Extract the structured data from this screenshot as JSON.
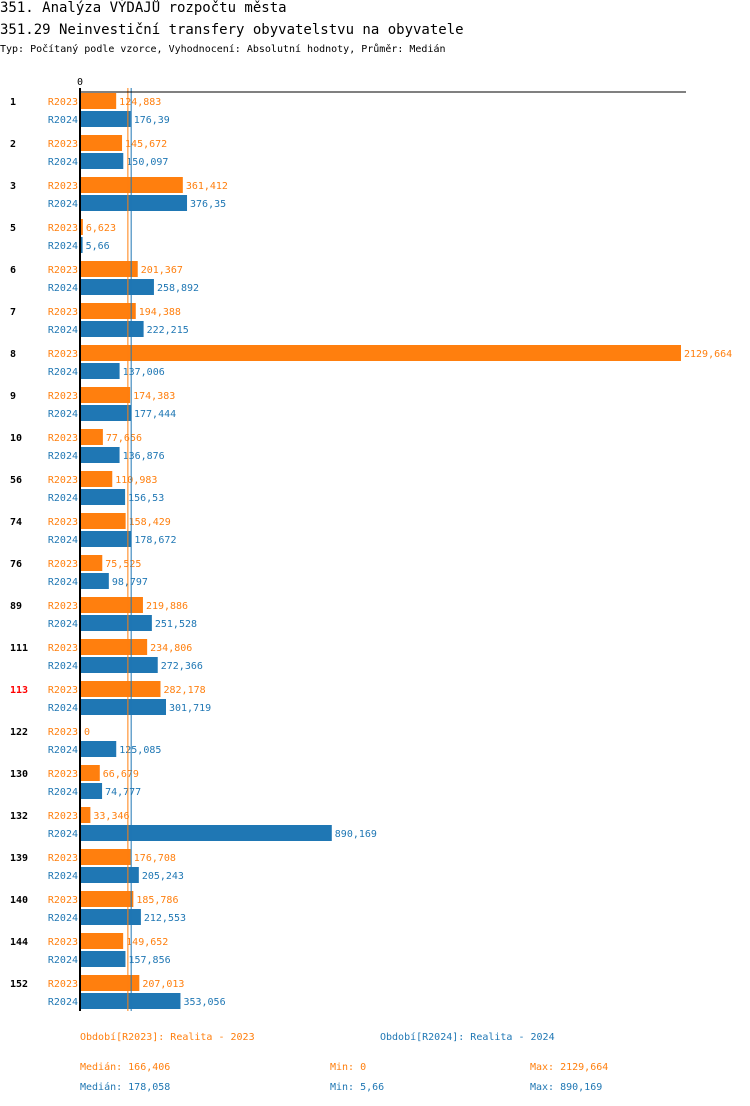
{
  "header": {
    "title": "351. Analýza VÝDAJŮ rozpočtu města",
    "subtitle": "351.29 Neinvestiční transfery obyvatelstvu na obyvatele",
    "info": "Typ: Počítaný podle vzorce, Vyhodnocení: Absolutní hodnoty, Průměr: Medián"
  },
  "chart_data": {
    "type": "bar",
    "orientation": "horizontal",
    "x_tick_labels": [
      "0"
    ],
    "xlim": [
      0,
      2129.664
    ],
    "categories": [
      "1",
      "2",
      "3",
      "5",
      "6",
      "7",
      "8",
      "9",
      "10",
      "56",
      "74",
      "76",
      "89",
      "111",
      "113",
      "122",
      "130",
      "132",
      "139",
      "140",
      "144",
      "152"
    ],
    "highlighted_category": "113",
    "series": [
      {
        "name": "R2023",
        "color": "#ff7f0e",
        "values": [
          124.883,
          145.672,
          361.412,
          6.623,
          201.367,
          194.388,
          2129.664,
          174.383,
          77.656,
          110.983,
          158.429,
          75.525,
          219.886,
          234.806,
          282.178,
          0,
          66.679,
          33.346,
          176.708,
          185.786,
          149.652,
          207.013
        ]
      },
      {
        "name": "R2024",
        "color": "#1f77b4",
        "values": [
          176.39,
          150.097,
          376.35,
          5.66,
          258.892,
          222.215,
          137.006,
          177.444,
          136.876,
          156.53,
          178.672,
          98.797,
          251.528,
          272.366,
          301.719,
          125.085,
          74.777,
          890.169,
          205.243,
          212.553,
          157.856,
          353.056
        ]
      }
    ],
    "median_lines": [
      166.406,
      178.058
    ],
    "grid": false
  },
  "legend": {
    "r2023": "Období[R2023]: Realita - 2023",
    "r2024": "Období[R2024]: Realita - 2024",
    "r2023_median": "Medián: 166,406",
    "r2023_min": "Min: 0",
    "r2023_max": "Max: 2129,664",
    "r2024_median": "Medián: 178,058",
    "r2024_min": "Min: 5,66",
    "r2024_max": "Max: 890,169"
  },
  "colors": {
    "r2023": "#ff7f0e",
    "r2024": "#1f77b4",
    "highlight": "#ff0000"
  }
}
